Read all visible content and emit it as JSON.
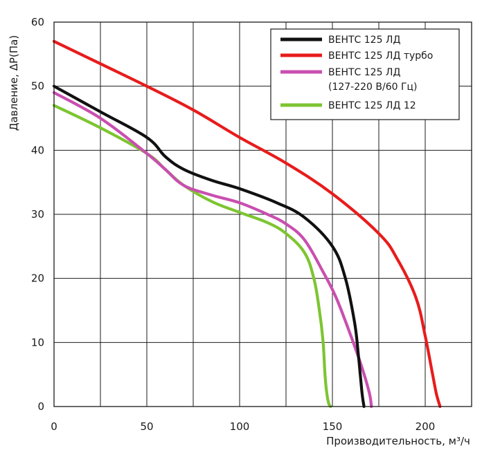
{
  "chart_data": {
    "type": "line",
    "title": "",
    "xlabel": "Производительность, м³/ч",
    "ylabel": "Давление, ΔP(Па)",
    "xlim": [
      0,
      225
    ],
    "ylim": [
      0,
      60
    ],
    "xticks": [
      "0",
      "50",
      "100",
      "150",
      "200"
    ],
    "yticks": [
      "0",
      "10",
      "20",
      "30",
      "40",
      "50",
      "60"
    ],
    "grid": true,
    "legend_position": "top-right",
    "series": [
      {
        "name": "ВЕНТС 125 ЛД",
        "color": "#111111",
        "x": [
          0,
          25,
          50,
          60,
          70,
          85,
          100,
          120,
          135,
          150,
          157,
          162,
          164,
          165,
          166,
          167
        ],
        "y": [
          50,
          46,
          42,
          39,
          37,
          35.3,
          34,
          31.8,
          29.5,
          25,
          20,
          13,
          8,
          5,
          2,
          0
        ]
      },
      {
        "name": "ВЕНТС 125 ЛД турбо",
        "color": "#e81c1c",
        "x": [
          0,
          25,
          50,
          75,
          100,
          125,
          150,
          175,
          185,
          195,
          200,
          204,
          206,
          208
        ],
        "y": [
          57,
          53.5,
          50,
          46.3,
          42,
          38,
          33.2,
          27,
          23,
          17,
          11,
          5,
          2,
          0
        ]
      },
      {
        "name": "ВЕНТС 125 ЛД\n(127-220 В/60 Гц)",
        "color": "#c94faf",
        "x": [
          0,
          25,
          50,
          60,
          70,
          85,
          100,
          115,
          125,
          135,
          145,
          152,
          160,
          166,
          170,
          171
        ],
        "y": [
          49,
          45,
          39.5,
          37,
          34.5,
          33,
          31.8,
          30,
          28.5,
          26,
          21,
          17,
          11,
          6,
          2,
          0
        ]
      },
      {
        "name": "ВЕНТС 125 ЛД 12",
        "color": "#7dc531",
        "x": [
          0,
          25,
          50,
          60,
          70,
          85,
          100,
          115,
          125,
          135,
          140,
          143,
          145,
          146,
          147,
          148,
          149
        ],
        "y": [
          47,
          43.5,
          39.5,
          37,
          34.5,
          32,
          30.3,
          28.7,
          27,
          24,
          20,
          15,
          10,
          5,
          2,
          0.5,
          0
        ]
      }
    ]
  }
}
